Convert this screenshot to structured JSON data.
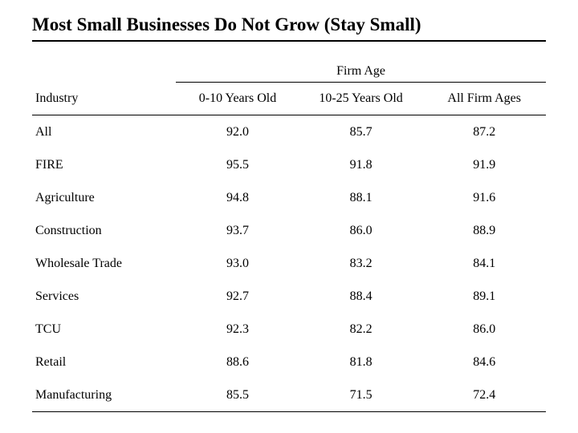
{
  "title": "Most Small Businesses Do Not Grow (Stay Small)",
  "table": {
    "type": "table",
    "supergroup_label": "Firm Age",
    "columns": {
      "industry": "Industry",
      "c1": "0-10 Years Old",
      "c2": "10-25 Years Old",
      "c3": "All Firm Ages"
    },
    "column_widths_pct": [
      28,
      24,
      24,
      24
    ],
    "column_alignment": [
      "left",
      "center",
      "center",
      "center"
    ],
    "rows": [
      {
        "industry": "All",
        "c1": "92.0",
        "c2": "85.7",
        "c3": "87.2"
      },
      {
        "industry": "FIRE",
        "c1": "95.5",
        "c2": "91.8",
        "c3": "91.9"
      },
      {
        "industry": "Agriculture",
        "c1": "94.8",
        "c2": "88.1",
        "c3": "91.6"
      },
      {
        "industry": "Construction",
        "c1": "93.7",
        "c2": "86.0",
        "c3": "88.9"
      },
      {
        "industry": "Wholesale Trade",
        "c1": "93.0",
        "c2": "83.2",
        "c3": "84.1"
      },
      {
        "industry": "Services",
        "c1": "92.7",
        "c2": "88.4",
        "c3": "89.1"
      },
      {
        "industry": "TCU",
        "c1": "92.3",
        "c2": "82.2",
        "c3": "86.0"
      },
      {
        "industry": "Retail",
        "c1": "88.6",
        "c2": "81.8",
        "c3": "84.6"
      },
      {
        "industry": "Manufacturing",
        "c1": "85.5",
        "c2": "71.5",
        "c3": "72.4"
      }
    ],
    "background_color": "#ffffff",
    "text_color": "#000000",
    "border_color": "#000000",
    "title_fontsize_pt": 17,
    "cell_fontsize_pt": 12
  }
}
